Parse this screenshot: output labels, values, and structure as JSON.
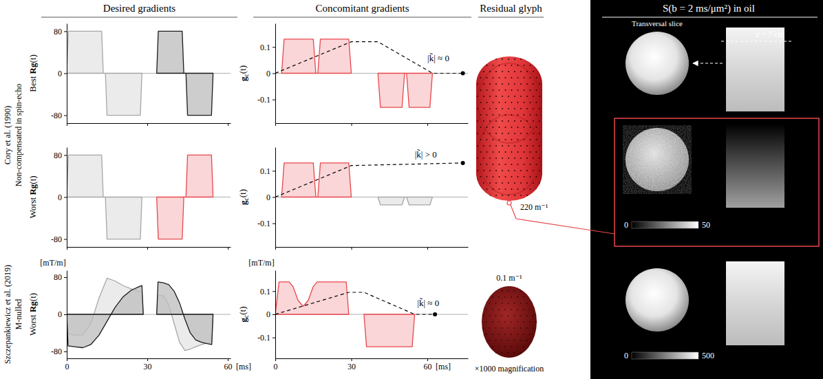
{
  "headers": [
    "Desired gradients",
    "Concomitant gradients",
    "Residual glyph"
  ],
  "row_groups": [
    {
      "label": "Cory et al. (1990)",
      "sublabel": "Non-compensated in spin-echo"
    },
    {
      "label": "Szczepankiewicz et al. (2019)",
      "sublabel": "M-nulled"
    }
  ],
  "chart_data": [
    {
      "type": "area",
      "y_label": "Best Rg(t)",
      "xlim": [
        0,
        61
      ],
      "xticks": [
        0,
        30,
        60
      ],
      "ylim": [
        -95,
        95
      ],
      "yticks": [
        -80,
        0,
        80
      ],
      "tick_labels": "y",
      "series": [
        {
          "color": "#a6a6a6",
          "x": [
            0,
            0.6,
            13,
            13.6,
            14.4,
            15,
            27.4,
            28
          ],
          "values": [
            0,
            80,
            80,
            0,
            0,
            -80,
            -80,
            0
          ]
        },
        {
          "color": "#1a1a1a",
          "x": [
            33.5,
            34.1,
            43,
            43.6,
            44.4,
            45,
            53.9,
            54.5
          ],
          "values": [
            0,
            80,
            80,
            0,
            0,
            -80,
            -80,
            0
          ]
        }
      ]
    },
    {
      "type": "area",
      "y_label": "Worst Rg(t)",
      "xlim": [
        0,
        61
      ],
      "xticks": [
        0,
        30,
        60
      ],
      "ylim": [
        -95,
        95
      ],
      "yticks": [
        -80,
        0,
        80
      ],
      "tick_labels": "y",
      "series": [
        {
          "color": "#a6a6a6",
          "x": [
            0,
            0.6,
            13,
            13.6,
            14.4,
            15,
            27.4,
            28
          ],
          "values": [
            0,
            80,
            80,
            0,
            0,
            -80,
            -80,
            0
          ]
        },
        {
          "color": "#e8474c",
          "x": [
            33.5,
            34.1,
            43,
            43.6,
            44.4,
            45,
            53.9,
            54.5
          ],
          "values": [
            0,
            -80,
            -80,
            0,
            0,
            80,
            80,
            0
          ]
        }
      ]
    },
    {
      "type": "area",
      "y_label": "Worst Rg(t)",
      "y_units": "[mT/m]",
      "x_label": "[ms]",
      "xlim": [
        0,
        61
      ],
      "xticks": [
        0,
        30,
        60
      ],
      "ylim": [
        -95,
        95
      ],
      "yticks": [
        -80,
        0,
        80
      ],
      "series": [
        {
          "color": "#a6a6a6",
          "x": [
            0,
            0.5,
            3,
            6,
            9,
            12,
            15,
            18,
            21,
            24,
            27,
            28,
            28.5
          ],
          "values": [
            0,
            -42,
            -45,
            -44,
            -20,
            35,
            78,
            72,
            62,
            55,
            50,
            48,
            0
          ]
        },
        {
          "color": "#1a1a1a",
          "x": [
            0,
            0.5,
            3,
            6,
            9,
            12,
            15,
            18,
            21,
            24,
            27,
            28,
            28.5
          ],
          "values": [
            0,
            -68,
            -70,
            -72,
            -65,
            -45,
            -15,
            15,
            38,
            52,
            60,
            62,
            0
          ]
        },
        {
          "color": "#a6a6a6",
          "x": [
            33.5,
            34,
            36,
            38,
            40,
            42,
            44,
            46,
            48,
            50,
            52,
            54,
            54.5
          ],
          "values": [
            0,
            42,
            40,
            20,
            -20,
            -60,
            -78,
            -75,
            -70,
            -66,
            -62,
            -60,
            0
          ]
        },
        {
          "color": "#1a1a1a",
          "x": [
            33.5,
            34,
            36,
            38,
            40,
            42,
            44,
            46,
            48,
            50,
            52,
            54,
            54.5
          ],
          "values": [
            0,
            70,
            68,
            64,
            50,
            25,
            -10,
            -40,
            -55,
            -60,
            -63,
            -65,
            0
          ]
        }
      ]
    },
    {
      "type": "area",
      "y_label": "gc(t)",
      "xlim": [
        0,
        76
      ],
      "xticks": [
        0,
        30,
        60
      ],
      "ylim": [
        -0.19,
        0.19
      ],
      "yticks": [
        -0.1,
        0,
        0.1
      ],
      "tick_labels": "y",
      "series": [
        {
          "color": "#e8474c",
          "x": [
            2.5,
            3.5,
            15,
            16,
            16.8,
            17.8,
            29,
            30
          ],
          "values": [
            0,
            0.13,
            0.13,
            0,
            0,
            0.13,
            0.13,
            0
          ]
        },
        {
          "color": "#e8474c",
          "x": [
            40.5,
            41.5,
            50,
            51,
            51.8,
            52.8,
            61,
            62
          ],
          "values": [
            0,
            -0.13,
            -0.13,
            0,
            0,
            -0.13,
            -0.13,
            0
          ]
        },
        {
          "type": "line",
          "line_style": "dashed",
          "color": "#000000",
          "x": [
            0,
            30,
            40.5,
            62,
            74
          ],
          "values": [
            0,
            0.12,
            0.12,
            0,
            0
          ]
        }
      ],
      "annotations": [
        {
          "text": "|k̃| ≈ 0",
          "x": 60,
          "y": 0.045
        }
      ]
    },
    {
      "type": "area",
      "y_label": "gc(t)",
      "xlim": [
        0,
        76
      ],
      "xticks": [
        0,
        30,
        60
      ],
      "ylim": [
        -0.19,
        0.19
      ],
      "yticks": [
        -0.1,
        0,
        0.1
      ],
      "tick_labels": "y",
      "series": [
        {
          "color": "#e8474c",
          "x": [
            2.5,
            3.5,
            15,
            16,
            16.8,
            17.8,
            29,
            30
          ],
          "values": [
            0,
            0.13,
            0.13,
            0,
            0,
            0.13,
            0.13,
            0
          ]
        },
        {
          "color": "#a6a6a6",
          "x": [
            40.5,
            41.5,
            50,
            51,
            51.8,
            52.8,
            61,
            62
          ],
          "values": [
            0,
            -0.03,
            -0.03,
            0,
            0,
            -0.03,
            -0.03,
            0
          ]
        },
        {
          "type": "line",
          "line_style": "dashed",
          "color": "#000000",
          "x": [
            0,
            30,
            74
          ],
          "values": [
            0,
            0.12,
            0.13
          ]
        }
      ],
      "annotations": [
        {
          "text": "|k̃| > 0",
          "x": 55,
          "y": 0.15
        }
      ]
    },
    {
      "type": "area",
      "y_label": "gc(t)",
      "y_units": "[mT/m]",
      "x_label": "[ms]",
      "xlim": [
        0,
        76
      ],
      "xticks": [
        0,
        30,
        60
      ],
      "ylim": [
        -0.19,
        0.19
      ],
      "yticks": [
        -0.1,
        0,
        0.1
      ],
      "series": [
        {
          "color": "#e8474c",
          "x": [
            0,
            1.5,
            5.5,
            7,
            9,
            11,
            13,
            15,
            16.5,
            28,
            29
          ],
          "values": [
            0,
            0.14,
            0.14,
            0.12,
            0.06,
            0.035,
            0.06,
            0.12,
            0.14,
            0.14,
            0
          ]
        },
        {
          "color": "#e8474c",
          "x": [
            35,
            36,
            54,
            55
          ],
          "values": [
            0,
            -0.14,
            -0.14,
            0
          ]
        },
        {
          "type": "line",
          "line_style": "dashed",
          "color": "#000000",
          "x": [
            0,
            29,
            35,
            55,
            63
          ],
          "values": [
            0,
            0.095,
            0.095,
            0,
            0
          ]
        }
      ],
      "annotations": [
        {
          "text": "|k̃| ≈ 0",
          "x": 56,
          "y": 0.035
        }
      ]
    }
  ],
  "glyphs": [
    {
      "label": "220 m⁻¹"
    },
    {
      "label": "0.1 m⁻¹",
      "magnification": "×1000 magnification"
    }
  ],
  "images": {
    "title": "S(b = 2 ms/μm²) in oil",
    "slice_label": "Transversal slice",
    "position_label": "z = 7 cm",
    "colorbars": [
      {
        "range": [
          0,
          50
        ],
        "ticks": [
          0,
          50
        ]
      },
      {
        "range": [
          0,
          500
        ],
        "ticks": [
          0,
          500
        ]
      }
    ]
  }
}
